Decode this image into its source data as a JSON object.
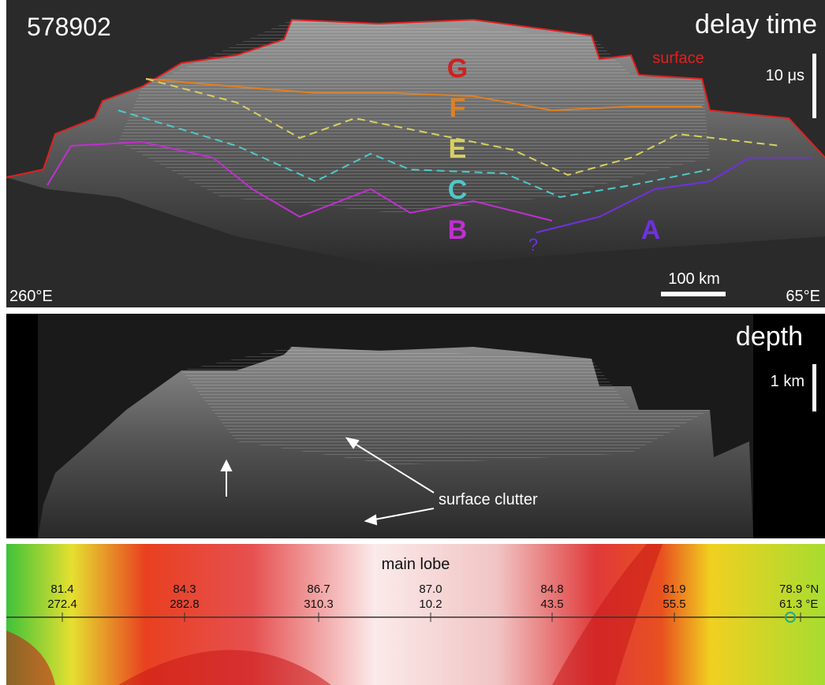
{
  "radargram": {
    "id": "578902",
    "mode": "delay time",
    "surface_label": "surface",
    "scale_time": "10 μs",
    "units": [
      "G",
      "F",
      "E",
      "C",
      "B",
      "A",
      "?"
    ],
    "left_lon": "260°E",
    "scale_distance": "100 km",
    "right_lon": "65°E"
  },
  "depth_panel": {
    "mode": "depth",
    "scale_depth": "1 km",
    "annotation": "surface clutter"
  },
  "map": {
    "label": "main lobe",
    "ticks": [
      {
        "lat": "81.4",
        "lon": "272.4"
      },
      {
        "lat": "84.3",
        "lon": "282.8"
      },
      {
        "lat": "86.7",
        "lon": "310.3"
      },
      {
        "lat": "87.0",
        "lon": "10.2"
      },
      {
        "lat": "84.8",
        "lon": "43.5"
      },
      {
        "lat": "81.9",
        "lon": "55.5"
      },
      {
        "lat": "78.9 °N",
        "lon": "61.3 °E"
      }
    ]
  }
}
